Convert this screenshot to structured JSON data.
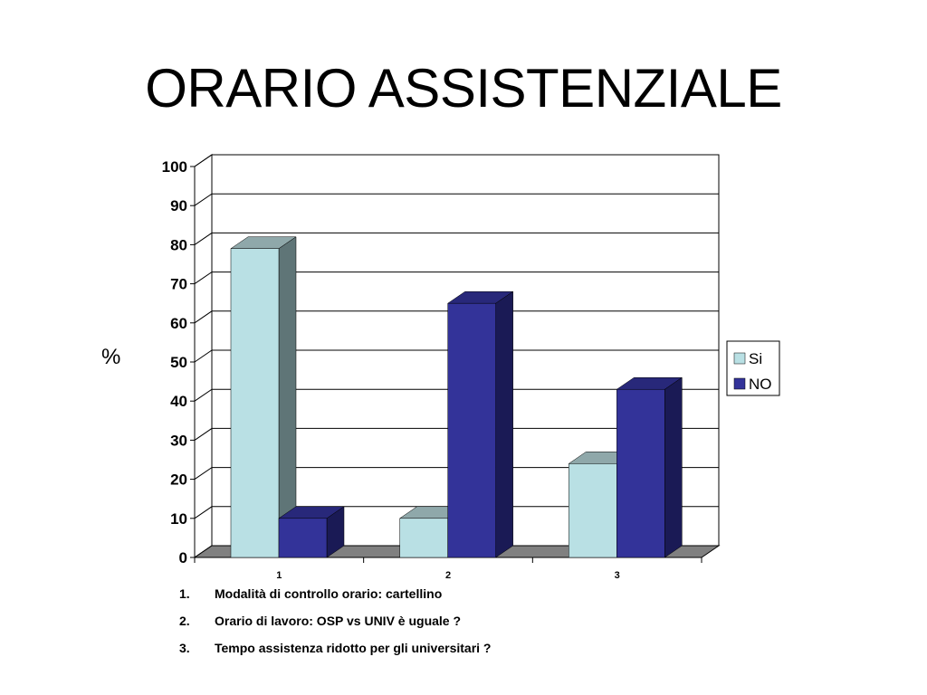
{
  "slide": {
    "title": "ORARIO ASSISTENZIALE",
    "y_unit": "%"
  },
  "chart_data": {
    "type": "bar",
    "style": "3d-clustered-column",
    "categories": [
      "1",
      "2",
      "3"
    ],
    "series": [
      {
        "name": "Si",
        "values": [
          79,
          10,
          24
        ],
        "color": "#b9e0e4",
        "side_color": "#5f7577",
        "top_color": "#8fa8aa"
      },
      {
        "name": "NO",
        "values": [
          10,
          65,
          43
        ],
        "color": "#333399",
        "side_color": "#1a1a55",
        "top_color": "#28287a"
      }
    ],
    "ylim": [
      0,
      100
    ],
    "yticks": [
      0,
      10,
      20,
      30,
      40,
      50,
      60,
      70,
      80,
      90,
      100
    ],
    "grid": true,
    "legend": "right"
  },
  "notes": [
    {
      "num": "1.",
      "text": "Modalità di controllo orario: cartellino"
    },
    {
      "num": "2.",
      "text": "Orario di lavoro: OSP vs UNIV è uguale ?"
    },
    {
      "num": "3.",
      "text": "Tempo assistenza ridotto per gli universitari ?"
    }
  ]
}
